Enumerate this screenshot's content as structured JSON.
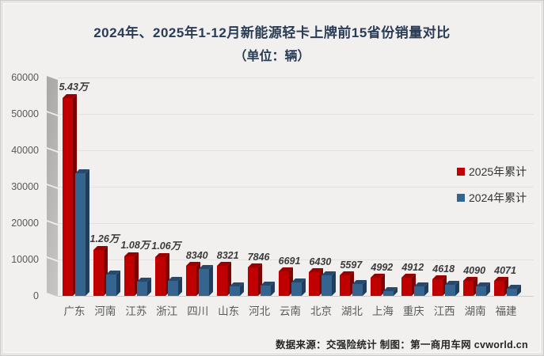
{
  "title": {
    "line1": "2024年、2025年1-12月新能源轻卡上牌前15省份销量对比",
    "line2": "（单位：辆）"
  },
  "footer": {
    "text": "数据来源：交强险统计 制图：第一商用车网 cvworld.cn"
  },
  "colors": {
    "background": "#F1F0EF",
    "title": "#2A3C55",
    "grid": "#E3E1DF",
    "axis_text": "#595959",
    "red_front": "#C00000",
    "red_top": "#9B0000",
    "red_side": "#7C0000",
    "blue_front": "#35648F",
    "blue_top": "#27496B",
    "blue_side": "#203D5C"
  },
  "chart_data": {
    "type": "bar",
    "style": "3d-clustered-column",
    "title": "2024年、2025年1-12月新能源轻卡上牌前15省份销量对比",
    "unit_label": "（单位：辆）",
    "categories": [
      "广东",
      "河南",
      "江苏",
      "浙江",
      "四川",
      "山东",
      "河北",
      "云南",
      "北京",
      "湖北",
      "上海",
      "重庆",
      "江西",
      "湖南",
      "福建"
    ],
    "series": [
      {
        "name": "2025年累计",
        "color": "#C00000",
        "color_top": "#9B0000",
        "color_side": "#7C0000",
        "values": [
          54300,
          12600,
          10800,
          10600,
          8340,
          8321,
          7846,
          6691,
          6430,
          5597,
          4992,
          4912,
          4618,
          4090,
          4071
        ],
        "labels": [
          "5.43万",
          "1.26万",
          "1.08万",
          "1.06万",
          "8340",
          "8321",
          "7846",
          "6691",
          "6430",
          "5597",
          "4992",
          "4912",
          "4618",
          "4090",
          "4071"
        ]
      },
      {
        "name": "2024年累计",
        "color": "#35648F",
        "color_top": "#27496B",
        "color_side": "#203D5C",
        "values": [
          33700,
          5800,
          4000,
          4200,
          7400,
          2600,
          2800,
          3800,
          5600,
          3300,
          1250,
          2500,
          3050,
          2700,
          2000
        ],
        "labels": []
      }
    ],
    "ylim": [
      0,
      60000
    ],
    "yticks": [
      0,
      10000,
      20000,
      30000,
      40000,
      50000,
      60000
    ],
    "grid": true,
    "legend_position": "right-inside",
    "ylabel": "",
    "xlabel": ""
  }
}
